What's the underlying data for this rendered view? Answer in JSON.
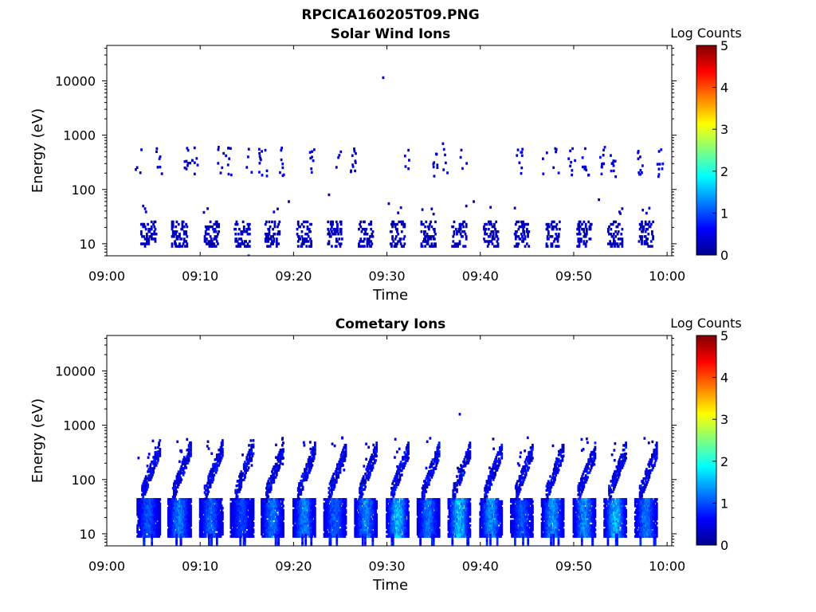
{
  "figure": {
    "title": "RPCICA160205T09.PNG"
  },
  "chart_data": [
    {
      "type": "heatmap",
      "title": "Solar Wind Ions",
      "xlabel": "Time",
      "ylabel": "Energy (eV)",
      "x_ticks": [
        "09:00",
        "09:10",
        "09:20",
        "09:30",
        "09:40",
        "09:50",
        "10:00"
      ],
      "xlim_minutes": [
        0,
        60.5
      ],
      "y_scale": "log",
      "y_ticks": [
        "10",
        "100",
        "1000",
        "10000"
      ],
      "ylim": [
        6,
        45000
      ],
      "colorbar": {
        "label": "Log Counts",
        "min": 0,
        "max": 5,
        "ticks": [
          "0",
          "1",
          "2",
          "3",
          "4",
          "5"
        ]
      },
      "colormap": "jet",
      "sweep_times_min": [
        4.5,
        7.8,
        11.2,
        14.5,
        17.8,
        21.2,
        24.5,
        27.8,
        31.2,
        34.5,
        37.8,
        41.2,
        44.5,
        47.8,
        51.2,
        54.5,
        57.8
      ],
      "high_band_times_min": [
        3.4,
        5.6,
        8.6,
        9.5,
        12.2,
        13,
        15.3,
        16.3,
        17.2,
        18.8,
        22,
        24.8,
        26.4,
        32.1,
        35.1,
        36.2,
        38.2,
        44.2,
        46.9,
        48.1,
        49.8,
        51.3,
        53.1,
        54.2,
        57.2,
        59.3
      ],
      "isolated_points": [
        {
          "t": 29.6,
          "e": 11500,
          "c": 0.3
        },
        {
          "t": 15.2,
          "e": 6,
          "c": 0.3
        },
        {
          "t": 36.0,
          "e": 700,
          "c": 0.4
        },
        {
          "t": 19.5,
          "e": 60,
          "c": 0.3
        },
        {
          "t": 23.8,
          "e": 80,
          "c": 0.3
        },
        {
          "t": 39.3,
          "e": 60,
          "c": 0.3
        },
        {
          "t": 52.7,
          "e": 65,
          "c": 0.3
        },
        {
          "t": 30.2,
          "e": 55,
          "c": 0.3
        }
      ]
    },
    {
      "type": "heatmap",
      "title": "Cometary Ions",
      "xlabel": "Time",
      "ylabel": "Energy (eV)",
      "x_ticks": [
        "09:00",
        "09:10",
        "09:20",
        "09:30",
        "09:40",
        "09:50",
        "10:00"
      ],
      "xlim_minutes": [
        0,
        60.5
      ],
      "y_scale": "log",
      "y_ticks": [
        "10",
        "100",
        "1000",
        "10000"
      ],
      "ylim": [
        6,
        45000
      ],
      "colorbar": {
        "label": "Log Counts",
        "min": 0,
        "max": 5,
        "ticks": [
          "0",
          "1",
          "2",
          "3",
          "4",
          "5"
        ]
      },
      "colormap": "jet",
      "sweep_times_min": [
        4.5,
        7.8,
        11.2,
        14.5,
        17.8,
        21.2,
        24.5,
        27.8,
        31.2,
        34.5,
        37.8,
        41.2,
        44.5,
        47.8,
        51.2,
        54.5,
        57.8
      ],
      "sweep_peak_log_counts": [
        1.2,
        1.5,
        1.3,
        1.1,
        1.4,
        1.5,
        1.3,
        1.5,
        1.9,
        1.4,
        1.9,
        1.6,
        1.2,
        1.6,
        1.6,
        1.8,
        1.4
      ],
      "isolated_points": [
        {
          "t": 37.8,
          "e": 1600,
          "c": 0.4
        },
        {
          "t": 3.4,
          "e": 250,
          "c": 0.6
        },
        {
          "t": 8.6,
          "e": 550,
          "c": 0.3
        },
        {
          "t": 18.8,
          "e": 550,
          "c": 0.3
        }
      ]
    }
  ]
}
